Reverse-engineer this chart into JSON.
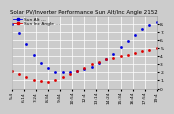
{
  "title": "Solar PV/Inverter Performance Sun Alt/Inc Angle 2152",
  "legend_blue": "Sun Alt ---",
  "legend_red": "Sun Inc Angle ---",
  "blue_x": [
    0,
    1,
    2,
    3,
    4,
    5,
    6,
    7,
    8,
    9,
    10,
    11,
    12,
    13,
    14,
    15,
    16,
    17,
    18,
    19,
    20
  ],
  "blue_y": [
    80,
    68,
    55,
    42,
    32,
    25,
    21,
    20,
    21,
    22,
    24,
    27,
    31,
    36,
    43,
    51,
    59,
    66,
    73,
    78,
    82
  ],
  "red_x": [
    0,
    1,
    2,
    3,
    4,
    5,
    6,
    7,
    8,
    9,
    10,
    11,
    12,
    13,
    14,
    15,
    16,
    17,
    18,
    19,
    20
  ],
  "red_y": [
    22,
    18,
    14,
    11,
    9,
    8,
    10,
    14,
    18,
    22,
    26,
    30,
    33,
    36,
    38,
    40,
    42,
    44,
    46,
    48,
    50
  ],
  "xlim": [
    0,
    20
  ],
  "ylim": [
    0,
    90
  ],
  "ytick_positions": [
    0,
    10,
    20,
    30,
    40,
    50,
    60,
    70,
    80
  ],
  "ytick_labels": [
    "0",
    "1.",
    "2.",
    "3.",
    "4.",
    "5.",
    "6.",
    "7.",
    "8."
  ],
  "xlabel_labels": [
    "5:4",
    "6:14",
    "7:24",
    "8:34",
    "9:44",
    "10:54",
    "12:4",
    "13:14",
    "14:24",
    "15:34",
    "16:44",
    "17:54",
    "19:4"
  ],
  "background_color": "#cccccc",
  "grid_color": "#ffffff",
  "blue_color": "#0000dd",
  "red_color": "#dd0000",
  "title_fontsize": 4.0,
  "tick_fontsize": 3.2,
  "legend_fontsize": 3.2
}
